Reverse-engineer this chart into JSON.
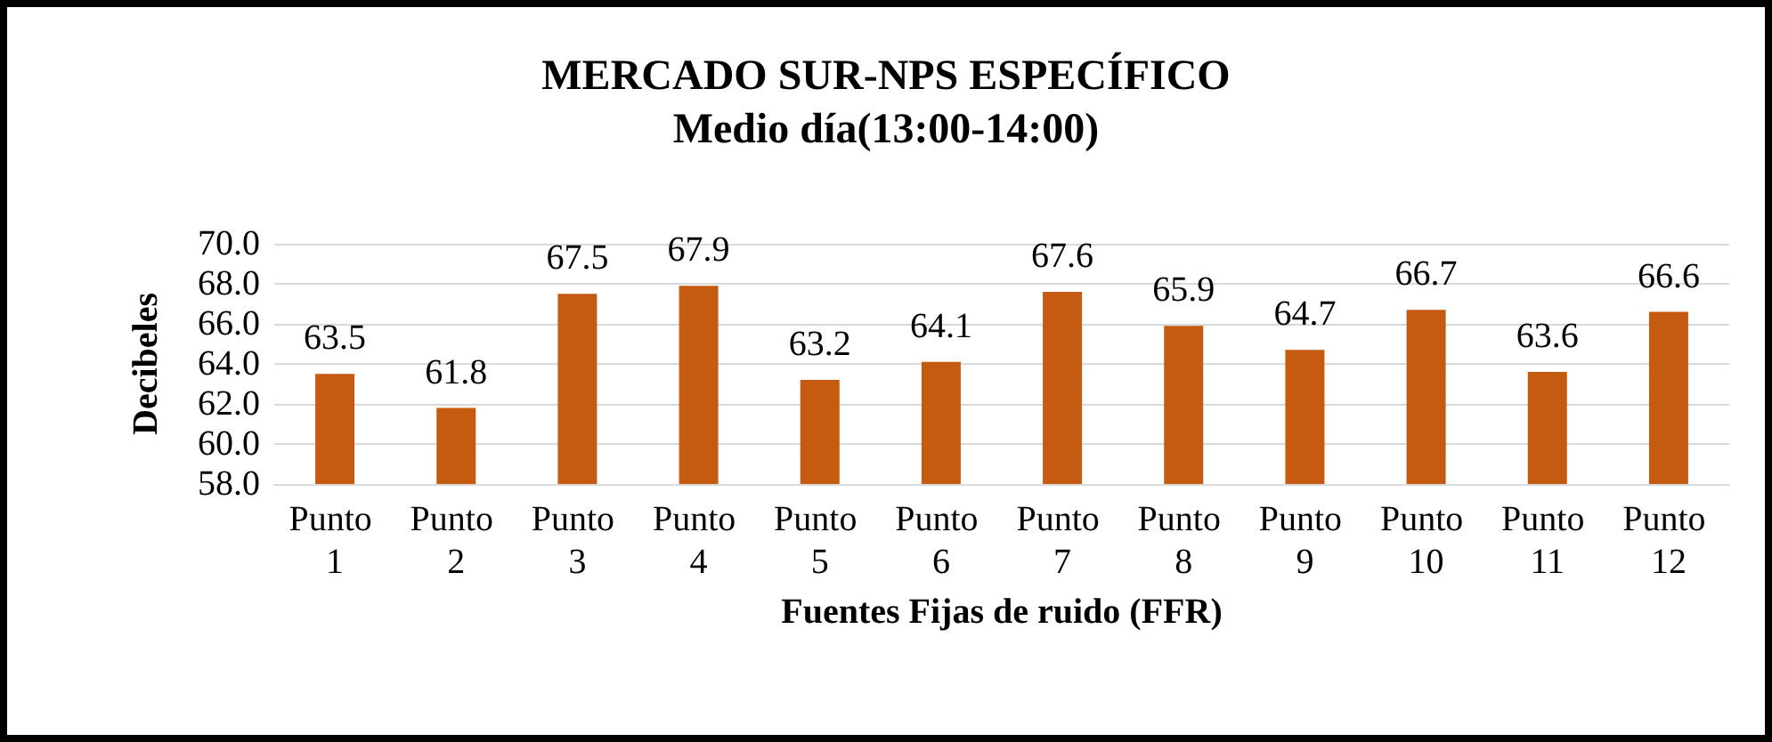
{
  "chart_data": {
    "type": "bar",
    "title": "MERCADO SUR-NPS ESPECÍFICO",
    "subtitle": "Medio día(13:00-14:00)",
    "xlabel": "Fuentes Fijas de ruido (FFR)",
    "ylabel": "Decibeles",
    "categories": [
      "Punto 1",
      "Punto 2",
      "Punto 3",
      "Punto 4",
      "Punto 5",
      "Punto 6",
      "Punto 7",
      "Punto 8",
      "Punto 9",
      "Punto 10",
      "Punto 11",
      "Punto 12"
    ],
    "values": [
      63.5,
      61.8,
      67.5,
      67.9,
      63.2,
      64.1,
      67.6,
      65.9,
      64.7,
      66.7,
      63.6,
      66.6
    ],
    "color": "#c55a11",
    "ylim": [
      58,
      70
    ],
    "yticks": [
      {
        "value": 58,
        "label": "58.0"
      },
      {
        "value": 60,
        "label": "60.0"
      },
      {
        "value": 62,
        "label": "62.0"
      },
      {
        "value": 64,
        "label": "64.0"
      },
      {
        "value": 66,
        "label": "66.0"
      },
      {
        "value": 68,
        "label": "68.0"
      },
      {
        "value": 70,
        "label": "70.0"
      }
    ],
    "grid": "y",
    "data_labels": true
  }
}
